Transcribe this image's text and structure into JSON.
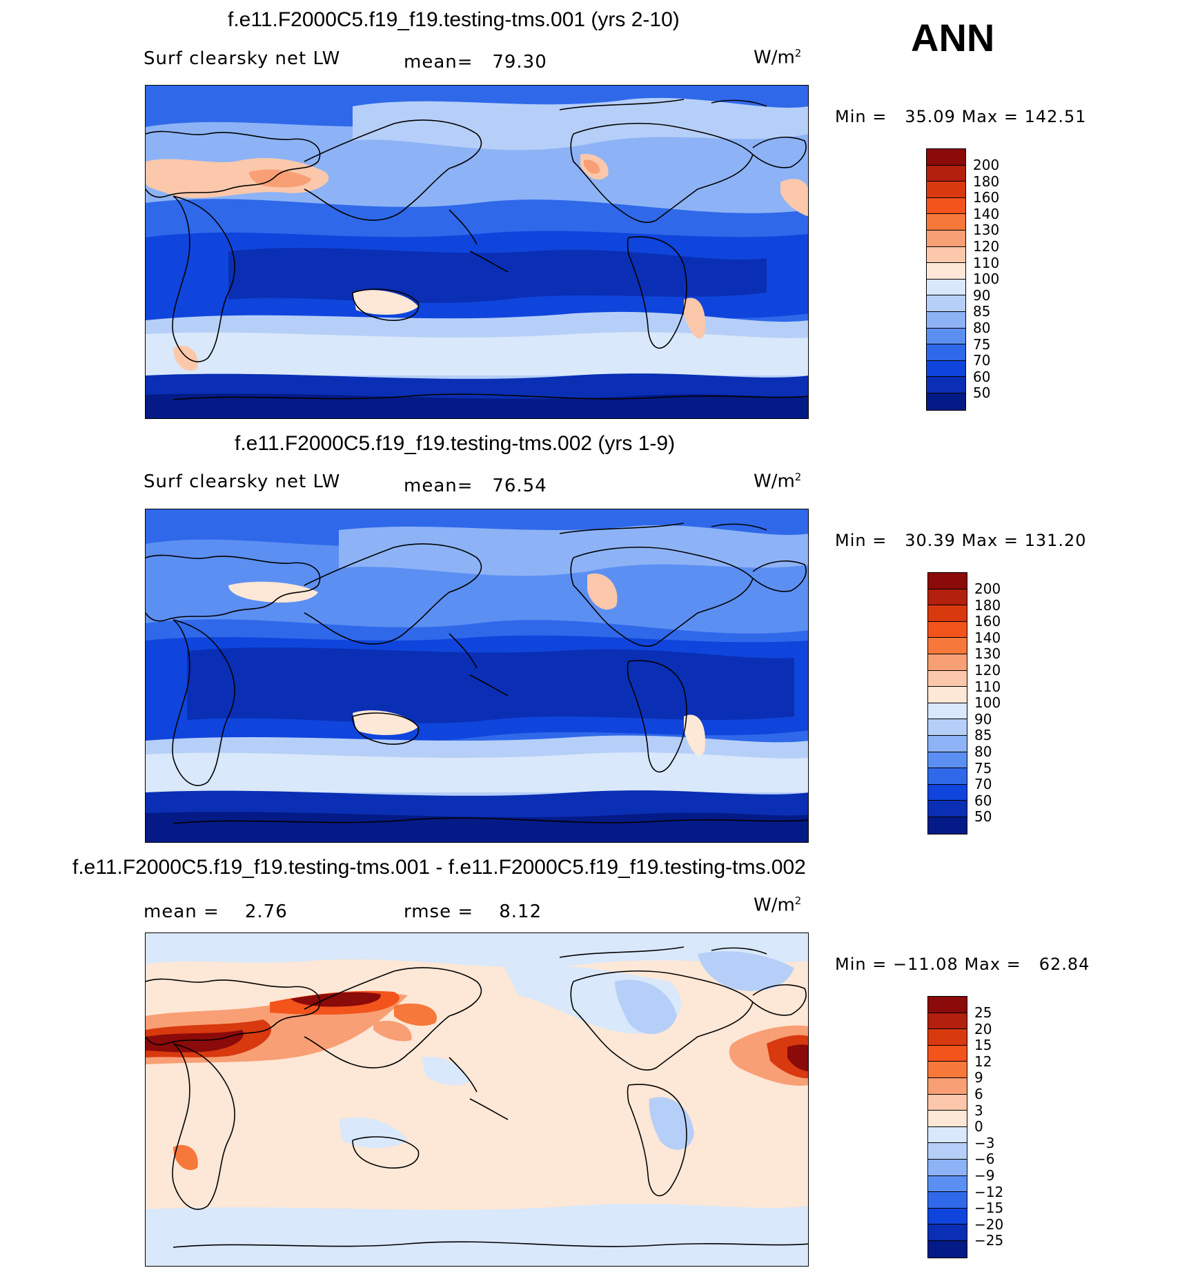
{
  "season": "ANN",
  "units_base": "W/m",
  "units_exp": "2",
  "panels": [
    {
      "title": "f.e11.F2000C5.f19_f19.testing-tms.001 (yrs 2-10)",
      "variable": "Surf clearsky net LW",
      "mean_label": "mean=",
      "mean_value": "79.30",
      "min_label": "Min =",
      "min_value": "35.09",
      "max_label": "Max =",
      "max_value": "142.51",
      "colorbar": {
        "labels": [
          "200",
          "180",
          "160",
          "140",
          "130",
          "120",
          "110",
          "100",
          "90",
          "85",
          "80",
          "75",
          "70",
          "60",
          "50"
        ],
        "colors": [
          "#8b0a0a",
          "#b3200d",
          "#d8390f",
          "#f2541c",
          "#f6783a",
          "#f89f75",
          "#fbc8ab",
          "#fde7d6",
          "#d9e8fa",
          "#b6cff8",
          "#8db3f6",
          "#5c8ff2",
          "#2f69ea",
          "#0f45dc",
          "#0a2fb4",
          "#041a86"
        ]
      }
    },
    {
      "title": "f.e11.F2000C5.f19_f19.testing-tms.002 (yrs 1-9)",
      "variable": "Surf clearsky net LW",
      "mean_label": "mean=",
      "mean_value": "76.54",
      "min_label": "Min =",
      "min_value": "30.39",
      "max_label": "Max =",
      "max_value": "131.20",
      "colorbar": {
        "labels": [
          "200",
          "180",
          "160",
          "140",
          "130",
          "120",
          "110",
          "100",
          "90",
          "85",
          "80",
          "75",
          "70",
          "60",
          "50"
        ],
        "colors": [
          "#8b0a0a",
          "#b3200d",
          "#d8390f",
          "#f2541c",
          "#f6783a",
          "#f89f75",
          "#fbc8ab",
          "#fde7d6",
          "#d9e8fa",
          "#b6cff8",
          "#8db3f6",
          "#5c8ff2",
          "#2f69ea",
          "#0f45dc",
          "#0a2fb4",
          "#041a86"
        ]
      }
    },
    {
      "title": "f.e11.F2000C5.f19_f19.testing-tms.001 - f.e11.F2000C5.f19_f19.testing-tms.002",
      "mean_label": "mean =",
      "mean_value": "2.76",
      "rmse_label": "rmse =",
      "rmse_value": "8.12",
      "min_label": "Min =",
      "min_value": "−11.08",
      "max_label": "Max =",
      "max_value": "62.84",
      "colorbar": {
        "labels": [
          "25",
          "20",
          "15",
          "12",
          "9",
          "6",
          "3",
          "0",
          "−3",
          "−6",
          "−9",
          "−12",
          "−15",
          "−20",
          "−25"
        ],
        "colors": [
          "#8b0a0a",
          "#b3200d",
          "#d8390f",
          "#f2541c",
          "#f6783a",
          "#f89f75",
          "#fbc8ab",
          "#fde7d6",
          "#d9e8fa",
          "#b6cff8",
          "#8db3f6",
          "#5c8ff2",
          "#2f69ea",
          "#0f45dc",
          "#0a2fb4",
          "#041a86"
        ]
      }
    }
  ],
  "colors": {
    "deep_blue": "#041a86",
    "light_blue": "#d9e8fa",
    "cream": "#fde7d6",
    "dark_red": "#8b0a0a"
  }
}
